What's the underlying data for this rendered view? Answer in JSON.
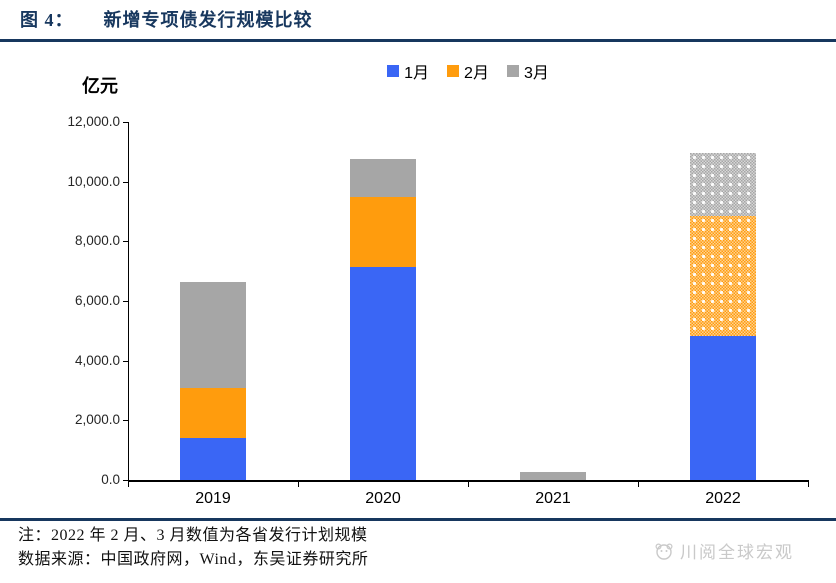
{
  "header": {
    "figure_label": "图 4：",
    "title": "新增专项债发行规模比较"
  },
  "axis": {
    "unit_label": "亿元"
  },
  "chart_data": {
    "type": "bar",
    "subtype": "stacked",
    "title": "新增专项债发行规模比较",
    "ylabel": "亿元",
    "categories": [
      "2019",
      "2020",
      "2021",
      "2022"
    ],
    "series": [
      {
        "name": "1月",
        "color": "#3A66F5",
        "values": [
          1400,
          7130,
          0,
          4840
        ]
      },
      {
        "name": "2月",
        "color": "#FF9C0D",
        "values": [
          1700,
          2370,
          0,
          4000
        ]
      },
      {
        "name": "3月",
        "color": "#A6A6A6",
        "values": [
          3530,
          1270,
          280,
          2130
        ]
      }
    ],
    "planned_pattern_segments": {
      "2022": [
        "2月",
        "3月"
      ]
    },
    "ylim": [
      0,
      12000
    ],
    "y_ticks": [
      "12,000.0",
      "10,000.0",
      "8,000.0",
      "6,000.0",
      "4,000.0",
      "2,000.0",
      "0.0"
    ],
    "grid": false,
    "legend_position": "top-center"
  },
  "notes": {
    "line1": "注：2022 年 2 月、3 月数值为各省发行计划规模",
    "line2": "数据来源：中国政府网，Wind，东吴证券研究所"
  },
  "watermark": {
    "text": "川阅全球宏观"
  },
  "colors": {
    "navy": "#17375E",
    "jan_blue": "#3A66F5",
    "feb_orange": "#FF9C0D",
    "mar_gray": "#A6A6A6",
    "watermark_gray": "#C9C9C9"
  }
}
